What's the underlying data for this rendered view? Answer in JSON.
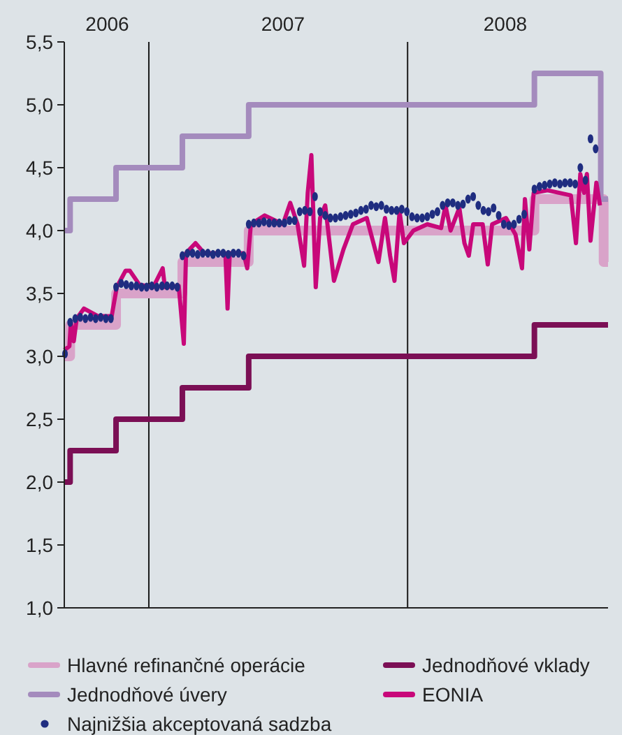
{
  "chart_data": {
    "type": "line",
    "xlim": [
      "2006-10-03",
      "2008-10-18"
    ],
    "ylim": [
      1,
      5.5
    ],
    "xticks": [
      {
        "value": "2006-12-01",
        "label": "2006"
      },
      {
        "value": "2007-07-30",
        "label": "2007"
      },
      {
        "value": "2008-05-30",
        "label": "2008"
      }
    ],
    "yticks": [
      {
        "value": 1,
        "label": "1,0"
      },
      {
        "value": 1.5,
        "label": "1,5"
      },
      {
        "value": 2,
        "label": "2,0"
      },
      {
        "value": 2.5,
        "label": "2,5"
      },
      {
        "value": 3,
        "label": "3,0"
      },
      {
        "value": 3.5,
        "label": "3,5"
      },
      {
        "value": 4,
        "label": "4,0"
      },
      {
        "value": 4.5,
        "label": "4,5"
      },
      {
        "value": 5,
        "label": "5,0"
      },
      {
        "value": 5.5,
        "label": "5,5"
      }
    ],
    "ref_lines": [
      {
        "axis": "x",
        "value": "2007-01-27",
        "color": "#1a1a1a"
      },
      {
        "axis": "x",
        "value": "2008-01-17",
        "color": "#1a1a1a"
      }
    ],
    "grid": false,
    "legend": "bottom",
    "marker": "none",
    "line_style": "solid",
    "series": [
      {
        "name": "Hlavné refinančné operácie",
        "type": "step",
        "color": "#d9a3c9",
        "x": [
          "2006-10-03",
          "2006-10-11",
          "2006-12-13",
          "2007-03-14",
          "2007-06-13",
          "2008-07-09",
          "2008-10-12",
          "2008-10-18"
        ],
        "values": [
          3.0,
          3.25,
          3.5,
          3.75,
          4.0,
          4.25,
          3.75,
          3.75
        ]
      },
      {
        "name": "Jednodňové úvery",
        "type": "step",
        "color": "#a48bbd",
        "x": [
          "2006-10-03",
          "2006-10-11",
          "2006-12-13",
          "2007-03-14",
          "2007-06-13",
          "2008-07-09",
          "2008-10-08",
          "2008-10-18"
        ],
        "values": [
          4.0,
          4.25,
          4.5,
          4.75,
          5.0,
          5.25,
          4.25,
          4.25
        ]
      },
      {
        "name": "Najnižšia akceptovaná sadzba",
        "type": "scatter",
        "marker": "circle",
        "color": "#1f2d80",
        "x": [
          "2006-10-04",
          "2006-10-11",
          "2006-10-18",
          "2006-10-25",
          "2006-11-01",
          "2006-11-08",
          "2006-11-15",
          "2006-11-22",
          "2006-11-29",
          "2006-12-06",
          "2006-12-13",
          "2006-12-20",
          "2006-12-27",
          "2007-01-03",
          "2007-01-10",
          "2007-01-17",
          "2007-01-24",
          "2007-01-31",
          "2007-02-07",
          "2007-02-14",
          "2007-02-21",
          "2007-02-28",
          "2007-03-07",
          "2007-03-14",
          "2007-03-21",
          "2007-03-28",
          "2007-04-04",
          "2007-04-11",
          "2007-04-18",
          "2007-04-25",
          "2007-05-02",
          "2007-05-09",
          "2007-05-16",
          "2007-05-23",
          "2007-05-30",
          "2007-06-06",
          "2007-06-13",
          "2007-06-20",
          "2007-06-27",
          "2007-07-04",
          "2007-07-11",
          "2007-07-18",
          "2007-07-25",
          "2007-08-01",
          "2007-08-08",
          "2007-08-15",
          "2007-08-22",
          "2007-08-29",
          "2007-09-05",
          "2007-09-12",
          "2007-09-19",
          "2007-09-26",
          "2007-10-03",
          "2007-10-10",
          "2007-10-17",
          "2007-10-24",
          "2007-10-31",
          "2007-11-07",
          "2007-11-14",
          "2007-11-21",
          "2007-11-28",
          "2007-12-05",
          "2007-12-12",
          "2007-12-19",
          "2007-12-26",
          "2008-01-02",
          "2008-01-09",
          "2008-01-16",
          "2008-01-23",
          "2008-01-30",
          "2008-02-06",
          "2008-02-13",
          "2008-02-20",
          "2008-02-27",
          "2008-03-05",
          "2008-03-12",
          "2008-03-19",
          "2008-03-26",
          "2008-04-02",
          "2008-04-09",
          "2008-04-16",
          "2008-04-23",
          "2008-04-30",
          "2008-05-07",
          "2008-05-14",
          "2008-05-21",
          "2008-05-28",
          "2008-06-04",
          "2008-06-11",
          "2008-06-18",
          "2008-06-25",
          "2008-07-09",
          "2008-07-16",
          "2008-07-23",
          "2008-07-30",
          "2008-08-06",
          "2008-08-13",
          "2008-08-20",
          "2008-08-27",
          "2008-09-03",
          "2008-09-10",
          "2008-09-17",
          "2008-09-24",
          "2008-10-01"
        ],
        "values": [
          3.02,
          3.27,
          3.3,
          3.31,
          3.3,
          3.31,
          3.3,
          3.31,
          3.3,
          3.3,
          3.55,
          3.58,
          3.57,
          3.56,
          3.56,
          3.55,
          3.55,
          3.56,
          3.55,
          3.56,
          3.56,
          3.56,
          3.55,
          3.8,
          3.82,
          3.82,
          3.81,
          3.82,
          3.82,
          3.81,
          3.82,
          3.82,
          3.81,
          3.82,
          3.82,
          3.8,
          4.05,
          4.06,
          4.06,
          4.07,
          4.06,
          4.06,
          4.06,
          4.06,
          4.08,
          4.08,
          4.15,
          4.16,
          4.15,
          4.27,
          4.15,
          4.12,
          4.1,
          4.1,
          4.11,
          4.12,
          4.13,
          4.14,
          4.16,
          4.17,
          4.2,
          4.19,
          4.2,
          4.17,
          4.16,
          4.16,
          4.17,
          4.15,
          4.11,
          4.1,
          4.1,
          4.11,
          4.13,
          4.15,
          4.2,
          4.22,
          4.22,
          4.2,
          4.21,
          4.25,
          4.27,
          4.2,
          4.16,
          4.15,
          4.18,
          4.12,
          4.05,
          4.04,
          4.05,
          4.09,
          4.13,
          4.33,
          4.35,
          4.36,
          4.37,
          4.38,
          4.37,
          4.38,
          4.38,
          4.37,
          4.5,
          4.4,
          4.73,
          4.65
        ]
      },
      {
        "name": "Jednodňové vklady",
        "type": "step",
        "color": "#7b0f55",
        "x": [
          "2006-10-03",
          "2006-10-11",
          "2006-12-13",
          "2007-03-14",
          "2007-06-13",
          "2008-07-09",
          "2008-10-18"
        ],
        "values": [
          2.0,
          2.25,
          2.5,
          2.75,
          3.0,
          3.25,
          3.25
        ]
      },
      {
        "name": "EONIA",
        "color": "#c8087a",
        "x": [
          "2006-10-03",
          "2006-10-10",
          "2006-10-12",
          "2006-10-16",
          "2006-10-20",
          "2006-10-30",
          "2006-11-18",
          "2006-12-07",
          "2006-12-14",
          "2006-12-26",
          "2007-01-01",
          "2007-01-14",
          "2007-02-02",
          "2007-02-15",
          "2007-02-18",
          "2007-03-09",
          "2007-03-16",
          "2007-03-19",
          "2007-04-01",
          "2007-04-13",
          "2007-05-12",
          "2007-05-15",
          "2007-05-18",
          "2007-06-06",
          "2007-06-11",
          "2007-06-16",
          "2007-07-05",
          "2007-07-30",
          "2007-08-09",
          "2007-08-19",
          "2007-08-28",
          "2007-09-02",
          "2007-09-07",
          "2007-09-13",
          "2007-09-19",
          "2007-09-26",
          "2007-10-08",
          "2007-10-21",
          "2007-11-03",
          "2007-11-22",
          "2007-12-08",
          "2007-12-17",
          "2007-12-24",
          "2007-12-30",
          "2008-01-06",
          "2008-01-12",
          "2008-01-25",
          "2008-02-13",
          "2008-03-03",
          "2008-03-09",
          "2008-03-16",
          "2008-03-28",
          "2008-04-04",
          "2008-04-10",
          "2008-04-16",
          "2008-04-29",
          "2008-05-06",
          "2008-05-12",
          "2008-05-31",
          "2008-06-13",
          "2008-06-22",
          "2008-06-26",
          "2008-07-02",
          "2008-07-08",
          "2008-07-27",
          "2008-08-28",
          "2008-09-04",
          "2008-09-10",
          "2008-09-15",
          "2008-09-19",
          "2008-09-24",
          "2008-10-02",
          "2008-10-07"
        ],
        "values": [
          3.05,
          3.08,
          3.27,
          3.12,
          3.3,
          3.38,
          3.32,
          3.32,
          3.55,
          3.68,
          3.68,
          3.57,
          3.55,
          3.7,
          3.55,
          3.56,
          3.1,
          3.82,
          3.9,
          3.82,
          3.82,
          3.38,
          3.82,
          3.82,
          3.7,
          4.05,
          4.12,
          4.05,
          4.22,
          4.05,
          3.72,
          4.3,
          4.6,
          3.55,
          4.1,
          4.2,
          3.6,
          3.85,
          4.05,
          4.1,
          3.75,
          4.1,
          3.8,
          3.6,
          4.15,
          3.9,
          4.0,
          4.05,
          4.02,
          4.2,
          4.0,
          4.18,
          3.9,
          3.8,
          4.05,
          4.05,
          3.73,
          4.05,
          4.1,
          3.97,
          3.7,
          4.25,
          3.85,
          4.3,
          4.32,
          4.28,
          3.9,
          4.45,
          4.3,
          4.45,
          3.92,
          4.38,
          4.2
        ]
      }
    ]
  }
}
